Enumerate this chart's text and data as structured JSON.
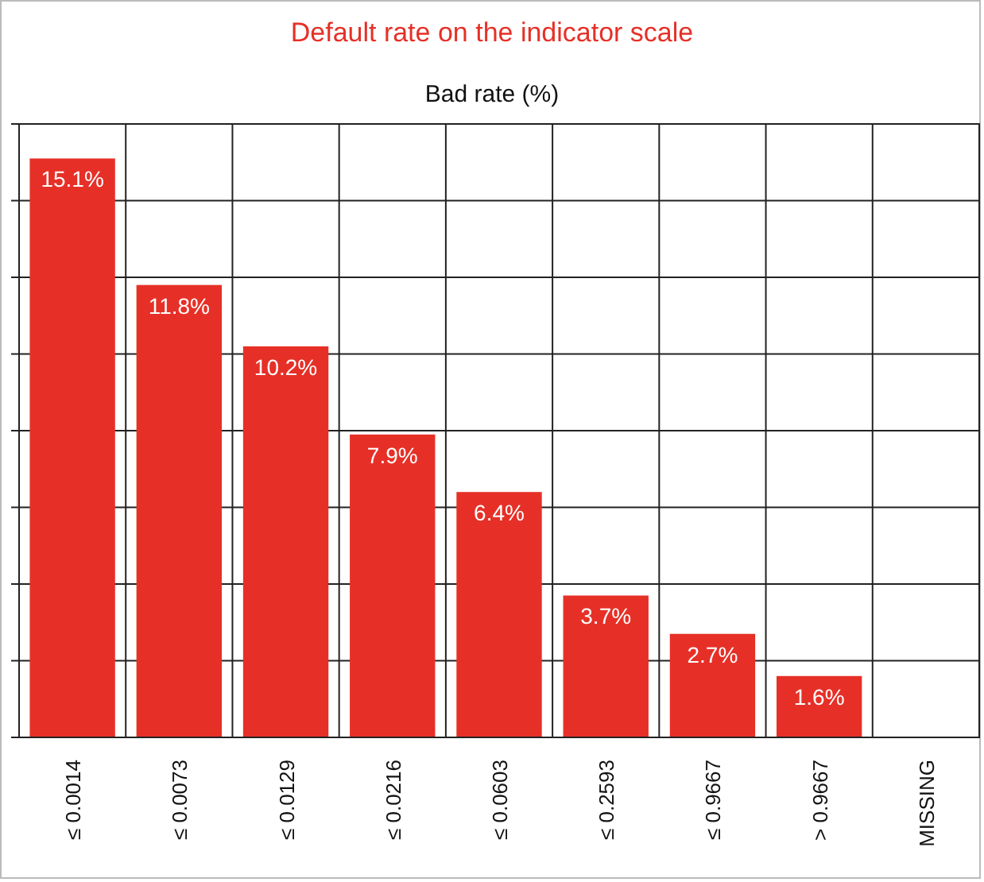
{
  "chart_data": {
    "type": "bar",
    "title": "Default rate on the indicator scale",
    "subtitle": "Bad rate (%)",
    "categories": [
      "≤ 0.0014",
      "≤ 0.0073",
      "≤ 0.0129",
      "≤ 0.0216",
      "≤ 0.0603",
      "≤ 0.2593",
      "≤ 0.9667",
      "> 0.9667",
      "MISSING"
    ],
    "values": [
      15.1,
      11.8,
      10.2,
      7.9,
      6.4,
      3.7,
      2.7,
      1.6,
      null
    ],
    "value_labels": [
      "15.1%",
      "11.8%",
      "10.2%",
      "7.9%",
      "6.4%",
      "3.7%",
      "2.7%",
      "1.6%",
      null
    ],
    "color": "#e63027",
    "ylim": [
      0,
      16
    ],
    "yticks": [
      {
        "value": 0,
        "label": null
      },
      {
        "value": 2,
        "label": null
      },
      {
        "value": 4,
        "label": null
      },
      {
        "value": 6,
        "label": null
      },
      {
        "value": 8,
        "label": null
      },
      {
        "value": 10,
        "label": null
      },
      {
        "value": 12,
        "label": null
      },
      {
        "value": 14,
        "label": null
      },
      {
        "value": 16,
        "label": null
      }
    ],
    "grid": true,
    "tick_labels": "x"
  }
}
